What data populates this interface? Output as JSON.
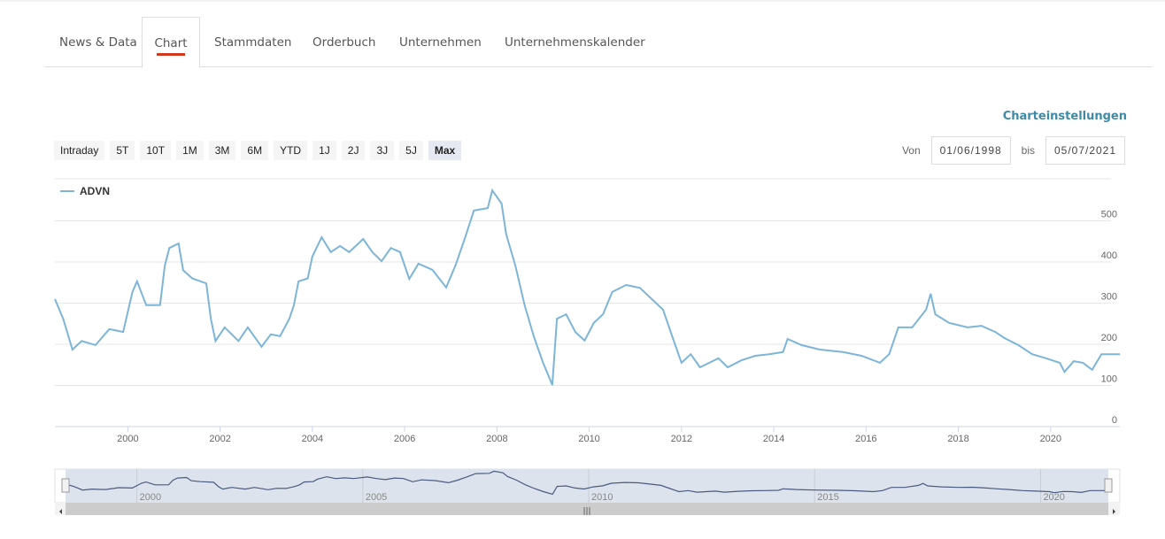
{
  "tabs": [
    {
      "label": "News & Data"
    },
    {
      "label": "Chart",
      "active": true
    },
    {
      "label": "Stammdaten"
    },
    {
      "label": "Orderbuch"
    },
    {
      "label": "Unternehmen"
    },
    {
      "label": "Unternehmenskalender"
    }
  ],
  "settings_label": "Charteinstellungen",
  "ranges": [
    "Intraday",
    "5T",
    "10T",
    "1M",
    "3M",
    "6M",
    "YTD",
    "1J",
    "2J",
    "3J",
    "5J",
    "Max"
  ],
  "selected_range": "Max",
  "date_from_label": "Von",
  "date_from": "01/06/1998",
  "date_to_label": "bis",
  "date_to": "05/07/2021",
  "colors": {
    "series": "#7cb5d8",
    "accent": "#d0391b",
    "link": "#3d8aa8"
  },
  "chart_data": {
    "type": "line",
    "legend": [
      "ADVN"
    ],
    "ylim": [
      0,
      600
    ],
    "yticks": [
      0,
      100,
      200,
      300,
      400,
      500
    ],
    "xticks": [
      2000,
      2002,
      2004,
      2006,
      2008,
      2010,
      2012,
      2014,
      2016,
      2018,
      2020
    ],
    "xlim": [
      1998.42,
      2021.5
    ],
    "navigator_ticks": [
      2000,
      2005,
      2010,
      2015,
      2020
    ],
    "series": [
      {
        "name": "ADVN",
        "x": [
          1998.42,
          1998.6,
          1998.8,
          1999.0,
          1999.3,
          1999.6,
          1999.9,
          2000.1,
          2000.2,
          2000.4,
          2000.7,
          2000.8,
          2000.9,
          2001.1,
          2001.2,
          2001.4,
          2001.7,
          2001.8,
          2001.9,
          2002.1,
          2002.4,
          2002.6,
          2002.9,
          2003.1,
          2003.3,
          2003.5,
          2003.6,
          2003.7,
          2003.9,
          2004.0,
          2004.2,
          2004.4,
          2004.6,
          2004.8,
          2005.1,
          2005.3,
          2005.5,
          2005.7,
          2005.9,
          2006.1,
          2006.3,
          2006.6,
          2006.9,
          2007.1,
          2007.3,
          2007.5,
          2007.8,
          2007.9,
          2008.1,
          2008.2,
          2008.4,
          2008.6,
          2008.8,
          2009.0,
          2009.2,
          2009.3,
          2009.5,
          2009.7,
          2009.9,
          2010.1,
          2010.3,
          2010.5,
          2010.8,
          2011.1,
          2011.3,
          2011.6,
          2011.8,
          2012.0,
          2012.2,
          2012.4,
          2012.8,
          2013.0,
          2013.3,
          2013.6,
          2013.9,
          2014.2,
          2014.3,
          2014.6,
          2015.0,
          2015.5,
          2015.9,
          2016.3,
          2016.5,
          2016.7,
          2017.0,
          2017.3,
          2017.4,
          2017.5,
          2017.8,
          2018.2,
          2018.5,
          2018.8,
          2019.0,
          2019.3,
          2019.6,
          2019.9,
          2020.2,
          2020.3,
          2020.5,
          2020.7,
          2020.9,
          2021.1,
          2021.5
        ],
        "y": [
          310,
          262,
          187,
          208,
          198,
          237,
          230,
          327,
          353,
          295,
          295,
          390,
          434,
          445,
          380,
          360,
          348,
          262,
          208,
          241,
          208,
          241,
          194,
          224,
          220,
          262,
          295,
          353,
          360,
          413,
          460,
          424,
          439,
          424,
          456,
          424,
          402,
          434,
          424,
          359,
          396,
          381,
          338,
          391,
          456,
          525,
          531,
          574,
          542,
          467,
          391,
          295,
          219,
          155,
          101,
          262,
          273,
          230,
          209,
          252,
          273,
          327,
          344,
          337,
          316,
          284,
          219,
          155,
          176,
          144,
          166,
          144,
          161,
          172,
          176,
          181,
          213,
          198,
          187,
          181,
          172,
          155,
          176,
          241,
          241,
          284,
          323,
          273,
          252,
          241,
          245,
          230,
          215,
          198,
          176,
          166,
          155,
          133,
          159,
          155,
          138,
          176,
          176
        ]
      }
    ]
  }
}
